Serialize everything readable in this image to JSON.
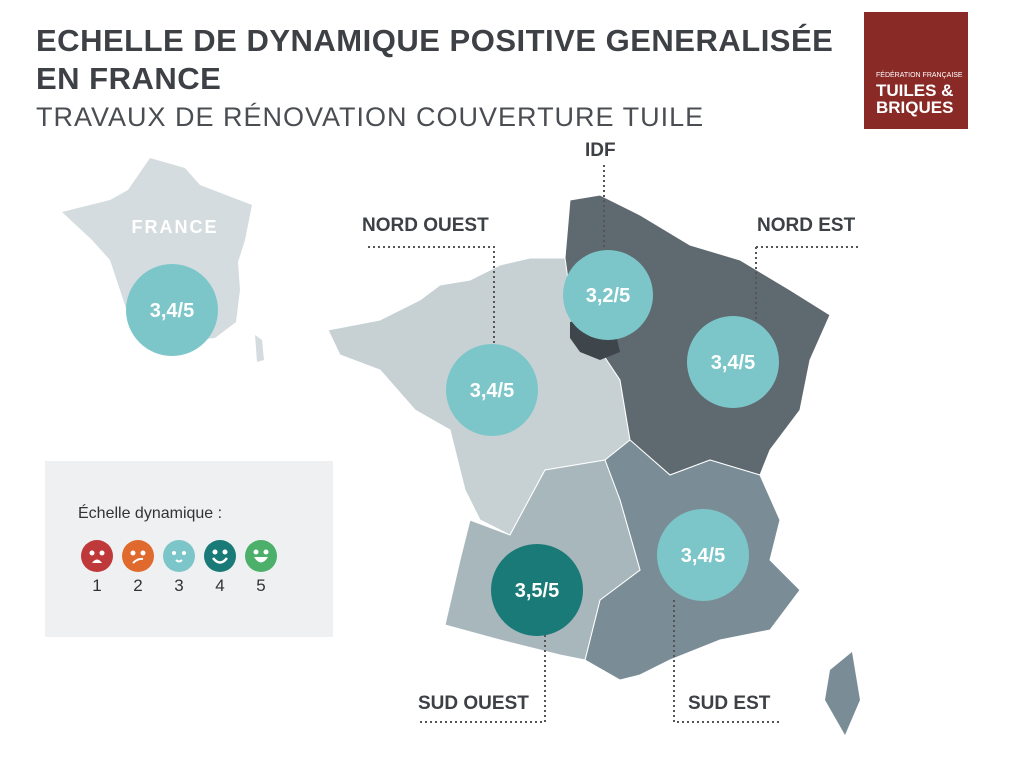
{
  "title": "ECHELLE DE DYNAMIQUE POSITIVE GENERALISÉE EN FRANCE",
  "title_line1": "ECHELLE DE DYNAMIQUE POSITIVE GENERALISÉE",
  "title_line2": "EN FRANCE",
  "subtitle": "TRAVAUX DE RÉNOVATION COUVERTURE TUILE",
  "logo": {
    "line1": "FÉDÉRATION FRANÇAISE",
    "line2": "TUILES &",
    "line3": "BRIQUES",
    "color": "#8a2a26"
  },
  "france": {
    "label": "FRANCE",
    "value": "3,4/5"
  },
  "regions": [
    {
      "name": "IDF",
      "value": "3,2/5"
    },
    {
      "name": "NORD OUEST",
      "value": "3,4/5"
    },
    {
      "name": "NORD EST",
      "value": "3,4/5"
    },
    {
      "name": "SUD OUEST",
      "value": "3,5/5"
    },
    {
      "name": "SUD EST",
      "value": "3,4/5"
    }
  ],
  "legend": {
    "title": "Échelle dynamique :",
    "items": [
      {
        "level": "1",
        "icon": "sad-face-icon",
        "color": "#c0393a"
      },
      {
        "level": "2",
        "icon": "confused-face-icon",
        "color": "#e0692e"
      },
      {
        "level": "3",
        "icon": "neutral-smile-icon",
        "color": "#7cc6c9"
      },
      {
        "level": "4",
        "icon": "smile-icon",
        "color": "#1a7a78"
      },
      {
        "level": "5",
        "icon": "grin-icon",
        "color": "#4caf6a"
      }
    ]
  }
}
